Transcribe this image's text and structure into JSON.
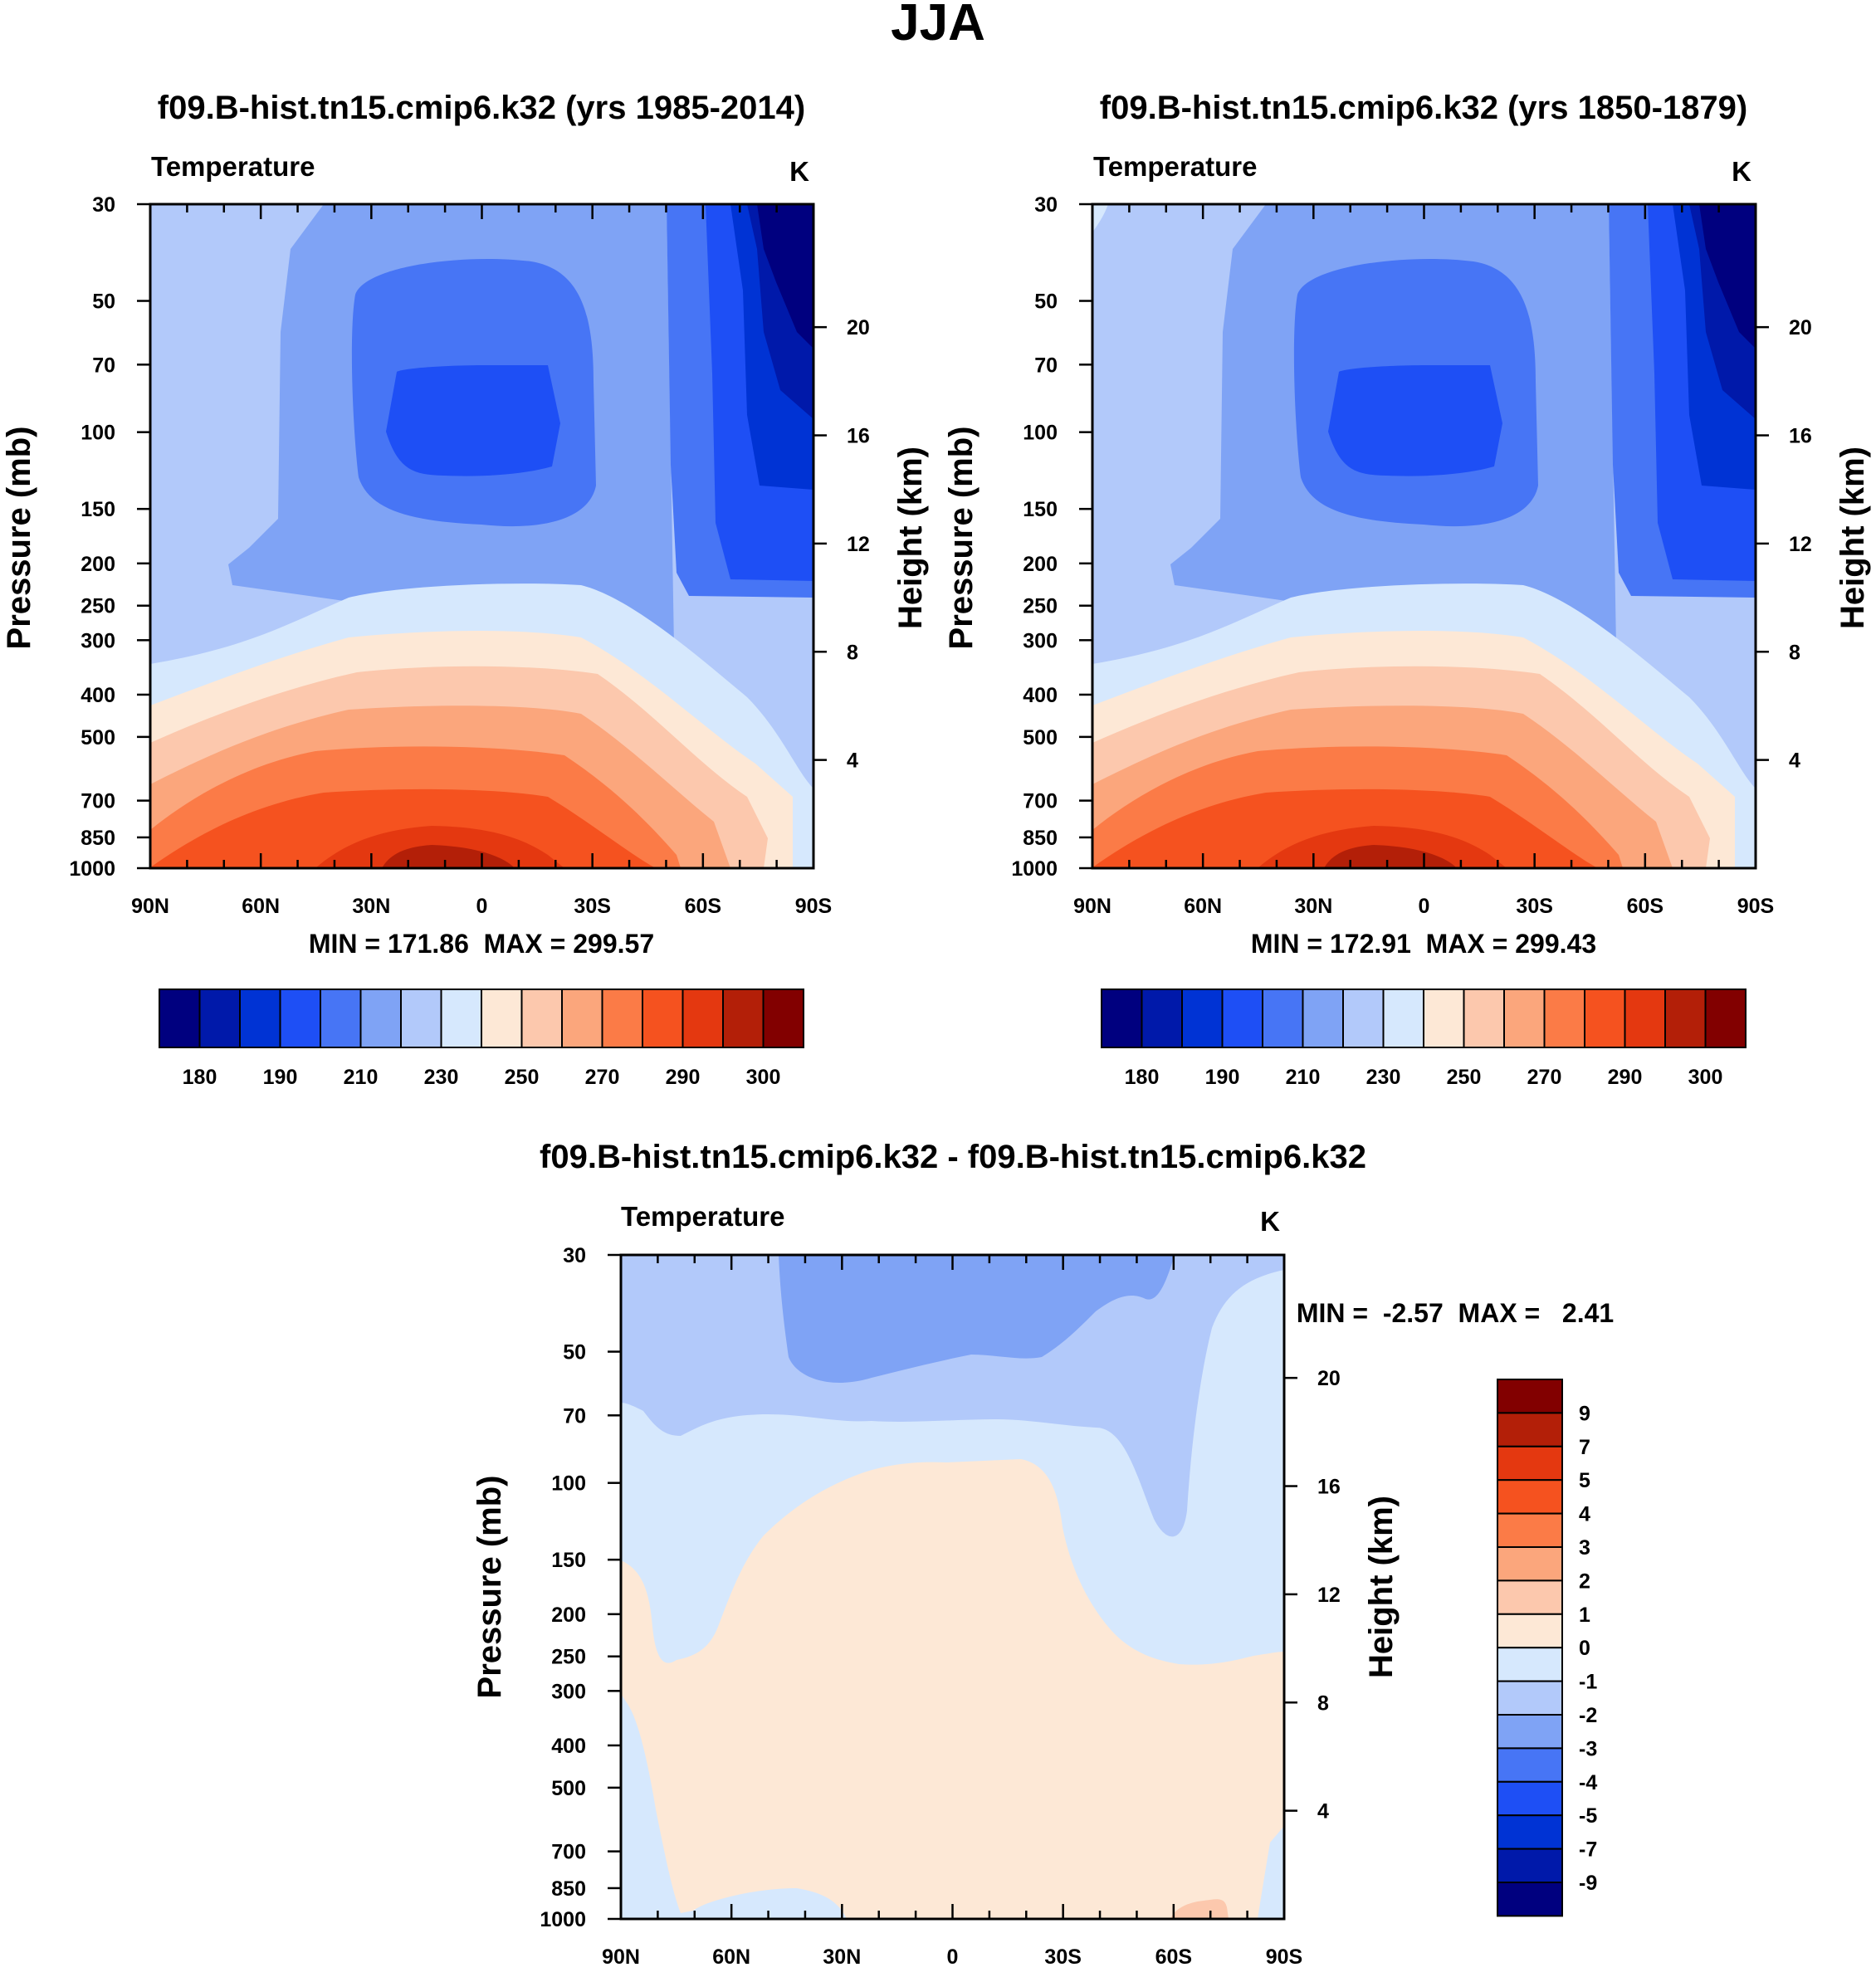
{
  "figure": {
    "title": "JJA"
  },
  "chart_data": [
    {
      "type": "contour",
      "title": "f09.B-hist.tn15.cmip6.k32 (yrs 1985-2014)",
      "left_label": "Temperature",
      "units": "K",
      "xlabel": "",
      "ylabel": "Pressure (mb)",
      "y2label": "Height (km)",
      "x_ticks": [
        "90N",
        "60N",
        "30N",
        "0",
        "30S",
        "60S",
        "90S"
      ],
      "y_ticks": [
        "30",
        "50",
        "70",
        "100",
        "150",
        "200",
        "250",
        "300",
        "400",
        "500",
        "700",
        "850",
        "1000"
      ],
      "y2_ticks": [
        "20",
        "16",
        "12",
        "8",
        "4"
      ],
      "ylim": [
        1000,
        30
      ],
      "stats": "MIN = 171.86  MAX = 299.57",
      "colorbar_labels": [
        "180",
        "190",
        "210",
        "230",
        "250",
        "270",
        "290",
        "300"
      ]
    },
    {
      "type": "contour",
      "title": "f09.B-hist.tn15.cmip6.k32 (yrs 1850-1879)",
      "left_label": "Temperature",
      "units": "K",
      "xlabel": "",
      "ylabel": "Pressure (mb)",
      "y2label": "Height (km)",
      "x_ticks": [
        "90N",
        "60N",
        "30N",
        "0",
        "30S",
        "60S",
        "90S"
      ],
      "y_ticks": [
        "30",
        "50",
        "70",
        "100",
        "150",
        "200",
        "250",
        "300",
        "400",
        "500",
        "700",
        "850",
        "1000"
      ],
      "y2_ticks": [
        "20",
        "16",
        "12",
        "8",
        "4"
      ],
      "ylim": [
        1000,
        30
      ],
      "stats": "MIN = 172.91  MAX = 299.43",
      "colorbar_labels": [
        "180",
        "190",
        "210",
        "230",
        "250",
        "270",
        "290",
        "300"
      ]
    },
    {
      "type": "contour",
      "title": "f09.B-hist.tn15.cmip6.k32 - f09.B-hist.tn15.cmip6.k32",
      "left_label": "Temperature",
      "units": "K",
      "xlabel": "",
      "ylabel": "Pressure (mb)",
      "y2label": "Height (km)",
      "x_ticks": [
        "90N",
        "60N",
        "30N",
        "0",
        "30S",
        "60S",
        "90S"
      ],
      "y_ticks": [
        "30",
        "50",
        "70",
        "100",
        "150",
        "200",
        "250",
        "300",
        "400",
        "500",
        "700",
        "850",
        "1000"
      ],
      "y2_ticks": [
        "20",
        "16",
        "12",
        "8",
        "4"
      ],
      "ylim": [
        1000,
        30
      ],
      "stats": "MIN =  -2.57  MAX =   2.41",
      "colorbar_labels": [
        "9",
        "7",
        "5",
        "4",
        "3",
        "2",
        "1",
        "0",
        "-1",
        "-2",
        "-3",
        "-4",
        "-5",
        "-7",
        "-9"
      ]
    }
  ],
  "palette": [
    "#00007f",
    "#0019aa",
    "#0033d4",
    "#1e4ff5",
    "#4775f5",
    "#7fa3f5",
    "#b2c9fa",
    "#d6e8fd",
    "#fde8d6",
    "#fcc8ad",
    "#fba67c",
    "#fb7b47",
    "#f5521f",
    "#e43810",
    "#b31f08",
    "#820000"
  ]
}
